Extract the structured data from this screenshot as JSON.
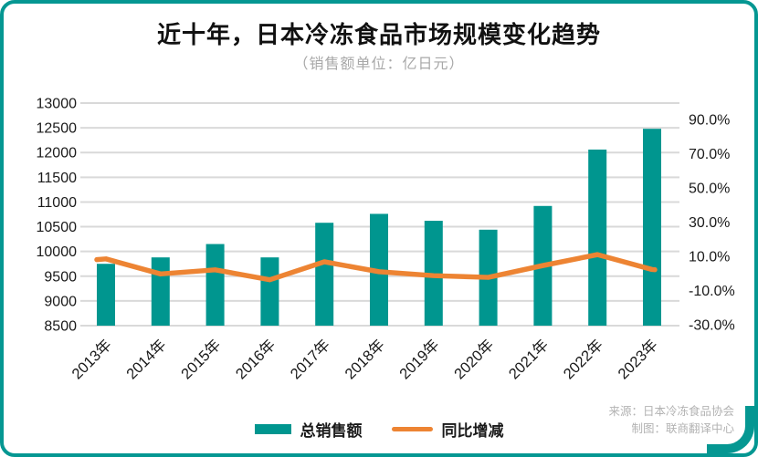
{
  "title": "近十年，日本冷冻食品市场规模变化趋势",
  "subtitle": "（销售额单位：亿日元）",
  "legend": {
    "bar_label": "总销售额",
    "line_label": "同比增减"
  },
  "source": {
    "line1": "来源：日本冷冻食品协会",
    "line2": "制图：联商翻译中心"
  },
  "colors": {
    "bar": "#00968F",
    "line": "#ED8433",
    "border": "#059792",
    "grid": "#D9D9D9",
    "subtitle_text": "#A8A8A8",
    "source_text": "#B3B3B3"
  },
  "chart_data": {
    "type": "bar",
    "subtype": "combo-bar-line",
    "title": "近十年，日本冷冻食品市场规模变化趋势",
    "unit_note": "（销售额单位：亿日元）",
    "categories": [
      "2013年",
      "2014年",
      "2015年",
      "2016年",
      "2017年",
      "2018年",
      "2019年",
      "2020年",
      "2021年",
      "2022年",
      "2023年"
    ],
    "series": [
      {
        "name": "总销售额",
        "type": "bar",
        "axis": "left",
        "values": [
          9750,
          9880,
          10150,
          9880,
          10580,
          10760,
          10620,
          10440,
          10920,
          12060,
          12480
        ]
      },
      {
        "name": "同比增减",
        "type": "line",
        "axis": "right",
        "values": [
          8.5,
          -0.3,
          2.1,
          -3.7,
          6.8,
          1.0,
          -1.3,
          -2.3,
          4.6,
          11.0,
          2.3
        ]
      }
    ],
    "left_axis": {
      "min": 8500,
      "max": 13000,
      "step": 500,
      "ticks": [
        "13000",
        "12500",
        "12000",
        "11500",
        "11000",
        "10500",
        "10000",
        "9500",
        "9000",
        "8500"
      ]
    },
    "right_axis": {
      "min": -30,
      "max": 90,
      "step": 20,
      "ticks": [
        "90.0%",
        "70.0%",
        "50.0%",
        "30.0%",
        "10.0%",
        "-10.0%",
        "-30.0%"
      ]
    },
    "grid": true,
    "legend_position": "bottom"
  }
}
